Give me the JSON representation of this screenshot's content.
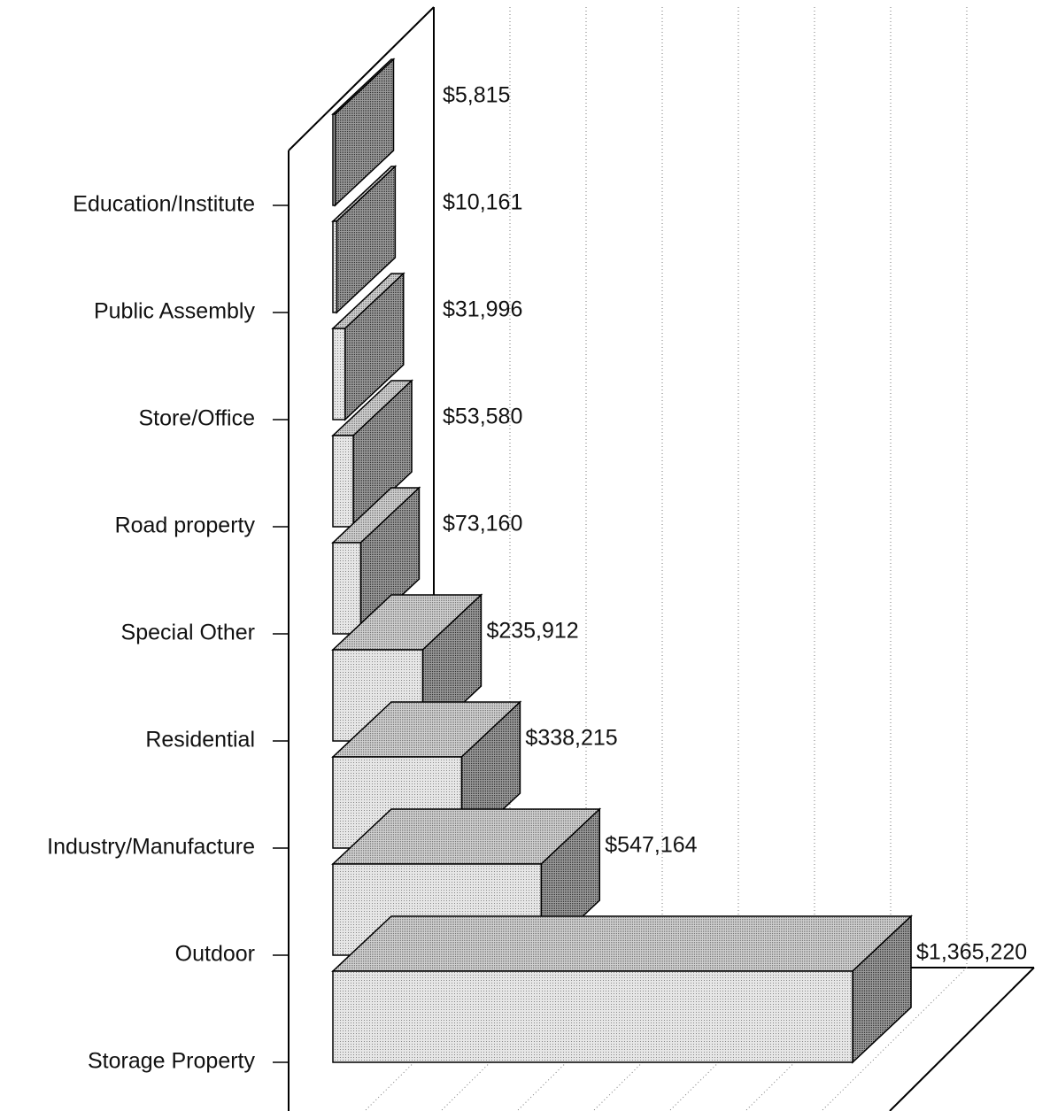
{
  "chart_data": {
    "type": "bar3d",
    "orientation": "horizontal",
    "categories": [
      "Education/Institute",
      "Public Assembly",
      "Store/Office",
      "Road property",
      "Special Other",
      "Residential",
      "Industry/Manufacture",
      "Outdoor",
      "Storage Property"
    ],
    "values": [
      5815,
      10161,
      31996,
      53580,
      73160,
      235912,
      338215,
      547164,
      1365220
    ],
    "value_labels": [
      "$5,815",
      "$10,161",
      "$31,996",
      "$53,580",
      "$73,160",
      "$235,912",
      "$338,215",
      "$547,164",
      "$1,365,220"
    ],
    "xlim": [
      0,
      1600000
    ],
    "xticks": [
      200000,
      400000,
      600000,
      800000,
      1000000,
      1200000,
      1400000
    ],
    "grid": true,
    "color": "#d8d8d8"
  }
}
